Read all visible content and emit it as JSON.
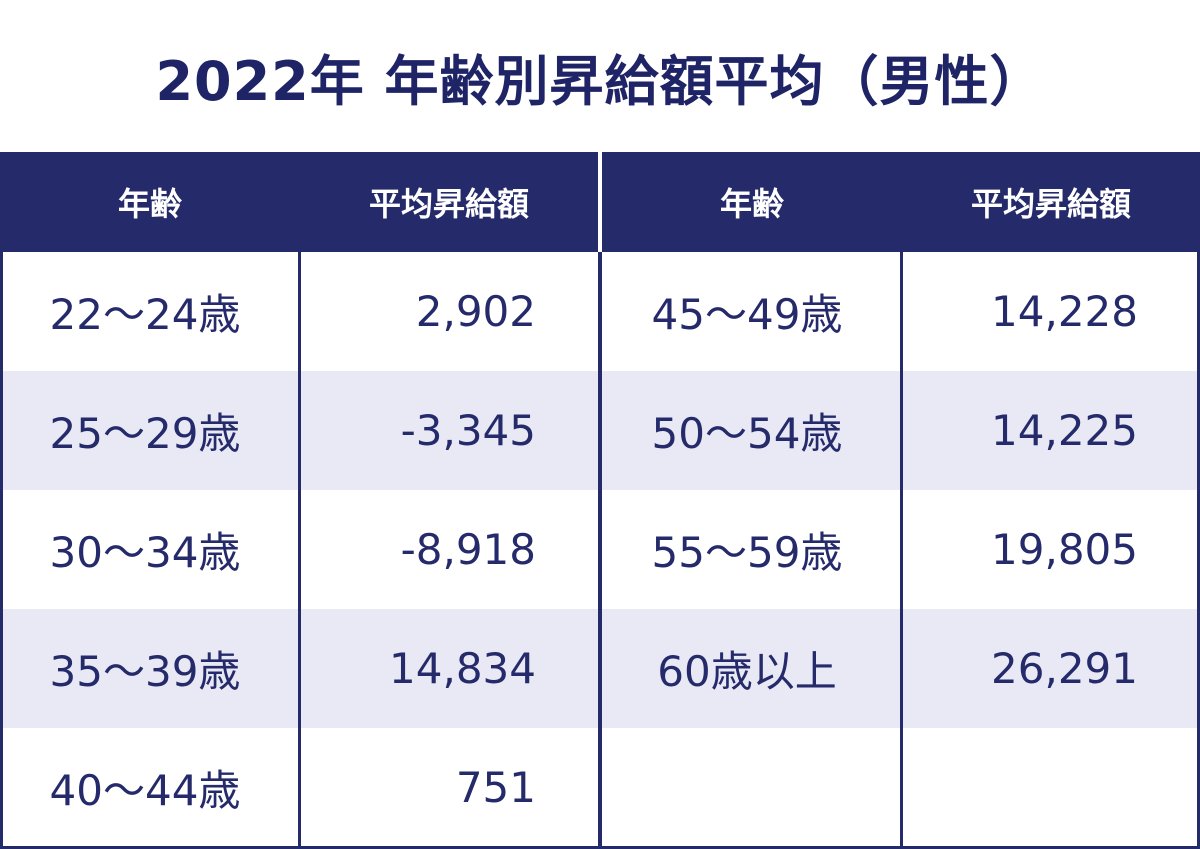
{
  "title": "2022年 年齢別昇給額平均（男性）",
  "header": {
    "age": "年齢",
    "amount": "平均昇給額"
  },
  "left_rows": [
    {
      "age": "22～24歳",
      "amount": "2,902"
    },
    {
      "age": "25～29歳",
      "amount": "-3,345"
    },
    {
      "age": "30～34歳",
      "amount": "-8,918"
    },
    {
      "age": "35～39歳",
      "amount": "14,834"
    },
    {
      "age": "40～44歳",
      "amount": "751"
    }
  ],
  "right_rows": [
    {
      "age": "45～49歳",
      "amount": "14,228"
    },
    {
      "age": "50～54歳",
      "amount": "14,225"
    },
    {
      "age": "55～59歳",
      "amount": "19,805"
    },
    {
      "age": "60歳以上",
      "amount": "26,291"
    },
    {
      "age": "",
      "amount": ""
    }
  ],
  "colors": {
    "navy": "#252a6b",
    "stripe": "#e8e9f4"
  }
}
